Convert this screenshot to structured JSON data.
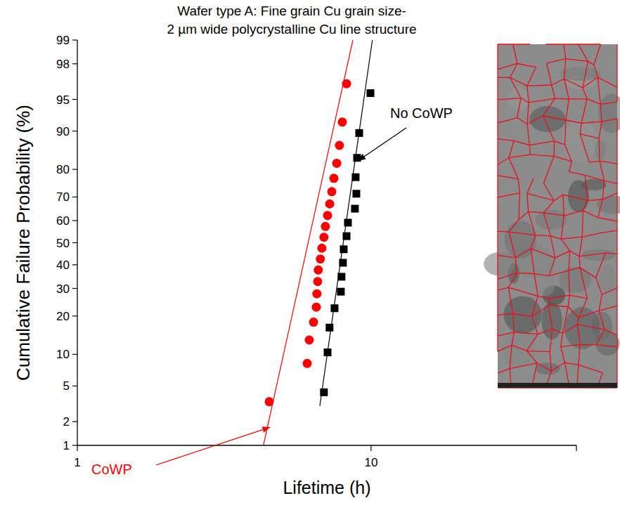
{
  "chart_data": {
    "type": "scatter",
    "title": [
      "Wafer type A: Fine grain Cu grain size-",
      "2 µm wide polycrystalline Cu line structure"
    ],
    "x_label": "Lifetime (h)",
    "y_label": "Cumulative Failure Probability (%)",
    "log": "x",
    "grid": false,
    "xlim": [
      1,
      50
    ],
    "xticks": [
      1,
      10
    ],
    "ylim": [
      1,
      99
    ],
    "yticks": [
      1,
      2,
      5,
      10,
      20,
      30,
      40,
      50,
      60,
      70,
      80,
      90,
      95,
      98,
      99
    ],
    "series": [
      {
        "name": "CoWP",
        "color": "#ff0000",
        "marker": "circle",
        "x": [
          4.5,
          6.06,
          6.16,
          6.37,
          6.51,
          6.54,
          6.58,
          6.61,
          6.72,
          6.8,
          6.91,
          6.99,
          7.11,
          7.23,
          7.35,
          7.47,
          7.64,
          7.8,
          7.98,
          8.25
        ],
        "values": [
          3.4,
          8.3,
          13.2,
          18.1,
          23.0,
          27.9,
          32.8,
          37.7,
          42.6,
          47.5,
          52.5,
          57.4,
          62.3,
          67.2,
          72.1,
          77.0,
          81.9,
          86.8,
          91.7,
          96.6
        ],
        "fit": {
          "x": [
            4.3,
            8.67
          ],
          "values": [
            1,
            99
          ]
        }
      },
      {
        "name": "No CoWP",
        "color": "#000000",
        "marker": "square",
        "x": [
          6.91,
          7.11,
          7.22,
          7.51,
          7.89,
          7.93,
          8.02,
          8.07,
          8.25,
          8.34,
          8.81,
          8.91,
          8.86,
          8.96,
          9.11,
          9.95
        ],
        "values": [
          4.3,
          10.4,
          16.5,
          22.6,
          28.7,
          34.8,
          40.9,
          47.0,
          53.0,
          59.1,
          65.2,
          71.3,
          77.4,
          83.5,
          89.6,
          95.7
        ],
        "fit": {
          "x": [
            6.69,
            10.1
          ],
          "values": [
            3.04,
            99
          ]
        }
      }
    ]
  }
}
